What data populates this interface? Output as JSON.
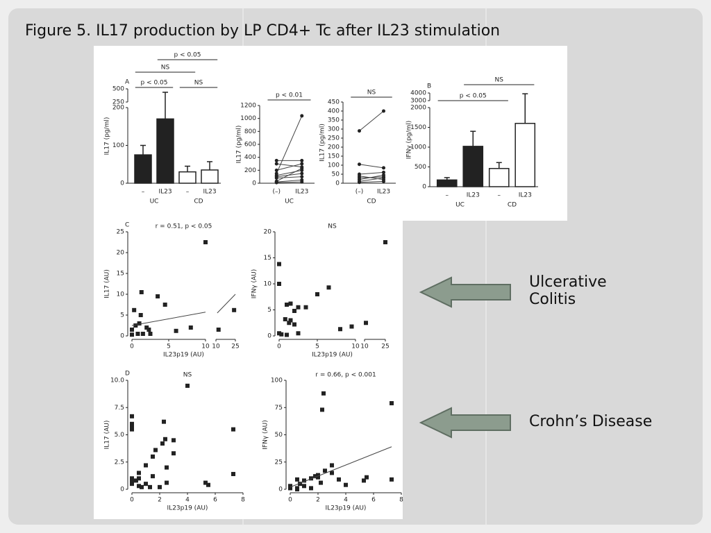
{
  "title": "Figure 5. IL17 production by LP CD4+ Tc after IL23 stimulation",
  "callouts": [
    "Ulcerative Colitis",
    "Crohn’s Disease"
  ],
  "chart_data": [
    {
      "type": "bar",
      "panel": "A",
      "ylabel": "IL17 (pg/ml)",
      "categories": [
        "–",
        "IL23",
        "–",
        "IL23"
      ],
      "groups": [
        "UC",
        "CD"
      ],
      "values": [
        75,
        170,
        30,
        35
      ],
      "errors": [
        25,
        265,
        15,
        22
      ],
      "colors": [
        "#222222",
        "#222222",
        "#ffffff",
        "#ffffff"
      ],
      "ysegments": [
        [
          0,
          200
        ],
        [
          250,
          500
        ]
      ],
      "yticks": [
        0,
        100,
        200,
        250,
        500
      ],
      "brackets": [
        {
          "label": "p < 0.05",
          "from": 0,
          "to": 1
        },
        {
          "label": "NS",
          "from": 0,
          "to": 2
        },
        {
          "label": "NS",
          "from": 2,
          "to": 3
        },
        {
          "label": "p < 0.05",
          "from": 1,
          "to": 3
        }
      ]
    },
    {
      "type": "paired",
      "ylabel": "IL17 (pg/ml)",
      "categories": [
        "(–)",
        "IL23"
      ],
      "groups": [
        "UC"
      ],
      "ylim": [
        0,
        1200
      ],
      "yticks": [
        0,
        200,
        400,
        600,
        800,
        1000,
        1200
      ],
      "brackets": [
        {
          "label": "p < 0.01",
          "from": 0,
          "to": 1
        }
      ],
      "series": [
        {
          "values": [
            150,
            1040
          ]
        },
        {
          "values": [
            350,
            350
          ]
        },
        {
          "values": [
            300,
            250
          ]
        },
        {
          "values": [
            200,
            300
          ]
        },
        {
          "values": [
            120,
            200
          ]
        },
        {
          "values": [
            100,
            150
          ]
        },
        {
          "values": [
            80,
            100
          ]
        },
        {
          "values": [
            30,
            230
          ]
        },
        {
          "values": [
            20,
            50
          ]
        },
        {
          "values": [
            10,
            20
          ]
        }
      ]
    },
    {
      "type": "paired",
      "ylabel": "IL17 (pg/ml)",
      "categories": [
        "(–)",
        "IL23"
      ],
      "groups": [
        "CD"
      ],
      "ylim": [
        0,
        450
      ],
      "yticks": [
        0,
        50,
        100,
        150,
        200,
        250,
        300,
        350,
        400,
        450
      ],
      "brackets": [
        {
          "label": "NS",
          "from": 0,
          "to": 1
        }
      ],
      "series": [
        {
          "values": [
            290,
            400
          ]
        },
        {
          "values": [
            105,
            85
          ]
        },
        {
          "values": [
            50,
            60
          ]
        },
        {
          "values": [
            40,
            20
          ]
        },
        {
          "values": [
            30,
            35
          ]
        },
        {
          "values": [
            20,
            45
          ]
        },
        {
          "values": [
            10,
            30
          ]
        },
        {
          "values": [
            5,
            10
          ]
        }
      ]
    },
    {
      "type": "bar",
      "panel": "B",
      "ylabel": "IFNγ (pg/ml)",
      "categories": [
        "–",
        "IL23",
        "–",
        "IL23"
      ],
      "groups": [
        "UC",
        "CD"
      ],
      "values": [
        170,
        1020,
        460,
        1600
      ],
      "errors": [
        60,
        380,
        150,
        2300
      ],
      "colors": [
        "#222222",
        "#222222",
        "#ffffff",
        "#ffffff"
      ],
      "ysegments": [
        [
          0,
          2000
        ],
        [
          3000,
          4000
        ]
      ],
      "yticks": [
        0,
        500,
        1000,
        1500,
        2000,
        3000,
        4000
      ],
      "brackets": [
        {
          "label": "p < 0.05",
          "from": 0,
          "to": 2
        },
        {
          "label": "NS",
          "from": 1,
          "to": 3
        }
      ]
    },
    {
      "type": "scatter",
      "panel": "C",
      "title": "r = 0.51,  p < 0.05",
      "xlabel": "IL23p19 (AU)",
      "ylabel": "IL17 (AU)",
      "xsegments": [
        [
          0,
          10
        ],
        [
          10,
          25
        ]
      ],
      "xticks": [
        [
          0,
          5,
          10
        ],
        [
          10,
          25
        ]
      ],
      "ylim": [
        0,
        25
      ],
      "yticks": [
        0,
        5,
        10,
        15,
        20,
        25
      ],
      "x": [
        0,
        0,
        0.3,
        0.5,
        0.8,
        1,
        1.2,
        1.3,
        1.5,
        2,
        2.3,
        2.5,
        3.5,
        4.5,
        6,
        8,
        10,
        12,
        24
      ],
      "y": [
        1.5,
        0.3,
        6.2,
        2.5,
        0.5,
        3,
        5,
        10.5,
        0.5,
        2,
        1.5,
        0.5,
        9.5,
        7.5,
        1.2,
        2,
        22.5,
        1.5,
        6.2
      ],
      "fits": [
        [
          [
            0,
            2.5
          ],
          [
            10,
            5.7
          ]
        ],
        [
          [
            11,
            5.5
          ],
          [
            25,
            10
          ]
        ]
      ]
    },
    {
      "type": "scatter",
      "title": "NS",
      "xlabel": "IL23p19 (AU)",
      "ylabel": "IFNγ (AU)",
      "xsegments": [
        [
          0,
          10
        ],
        [
          10,
          25
        ]
      ],
      "xticks": [
        [
          0,
          5,
          10
        ],
        [
          10,
          25
        ]
      ],
      "ylim": [
        0,
        20
      ],
      "yticks": [
        0,
        5,
        10,
        15,
        20
      ],
      "x": [
        0,
        0,
        0,
        0.3,
        0.8,
        1,
        1,
        1.3,
        1.5,
        1.5,
        2,
        2,
        2.5,
        2.5,
        3.5,
        5,
        6.5,
        8,
        9.5,
        11,
        25
      ],
      "y": [
        13.8,
        10,
        0.5,
        0.3,
        3.2,
        6,
        0.2,
        2.5,
        6.2,
        3,
        2.2,
        4.8,
        5.5,
        0.5,
        5.5,
        8,
        9.3,
        1.3,
        1.8,
        2.5,
        18
      ]
    },
    {
      "type": "scatter",
      "panel": "D",
      "title": "NS",
      "xlabel": "IL23p19 (AU)",
      "ylabel": "IL17 (AU)",
      "xlim": [
        0,
        8
      ],
      "xticks": [
        0,
        2,
        4,
        6,
        8
      ],
      "ylim": [
        0,
        10
      ],
      "yticks": [
        0,
        2.5,
        {
          "value": 5,
          "label": "5.0"
        },
        7.5,
        {
          "value": 10,
          "label": "10.0"
        }
      ],
      "x": [
        0,
        0,
        0,
        0,
        0,
        0,
        0,
        0.3,
        0.5,
        0.5,
        0.5,
        0.7,
        1,
        1,
        1.3,
        1.5,
        1.5,
        1.7,
        2,
        2.2,
        2.3,
        2.4,
        2.5,
        2.5,
        3,
        3,
        4,
        5.3,
        5.5,
        7.3,
        7.3
      ],
      "y": [
        6.7,
        6,
        5.8,
        5.5,
        1,
        0.8,
        0.5,
        0.8,
        1.5,
        1,
        0.3,
        0.2,
        2.2,
        0.5,
        0.2,
        3,
        1.2,
        3.6,
        0.2,
        4.2,
        6.2,
        4.6,
        0.6,
        2,
        4.5,
        3.3,
        9.5,
        0.6,
        0.4,
        5.5,
        1.4
      ]
    },
    {
      "type": "scatter",
      "title": "r = 0.66,  p < 0.001",
      "xlabel": "IL23p19 (AU)",
      "ylabel": "IFNγ (AU)",
      "xlim": [
        0,
        8
      ],
      "xticks": [
        0,
        2,
        4,
        6,
        8
      ],
      "ylim": [
        0,
        100
      ],
      "yticks": [
        0,
        25,
        50,
        75,
        100
      ],
      "x": [
        0,
        0,
        0,
        0.5,
        0.5,
        0.5,
        0.7,
        1,
        1,
        1.5,
        1.5,
        1.8,
        2,
        2,
        2.2,
        2.3,
        2.4,
        2.5,
        3,
        3,
        3.5,
        4,
        5.3,
        5.5,
        7.3,
        7.3
      ],
      "y": [
        1,
        2,
        3,
        0,
        1,
        9,
        5,
        8,
        3,
        10,
        1,
        12,
        13,
        11,
        6,
        73,
        88,
        17,
        22,
        15,
        9,
        4,
        8,
        11,
        79,
        9
      ],
      "fits": [
        [
          [
            0,
            2
          ],
          [
            7.3,
            39
          ]
        ]
      ]
    }
  ]
}
